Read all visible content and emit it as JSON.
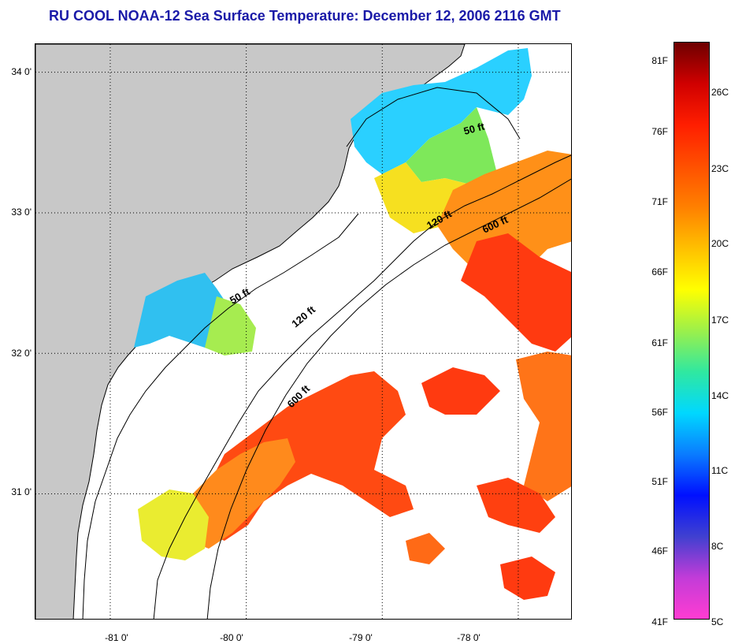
{
  "title": "RU COOL  NOAA-12  Sea Surface Temperature:  December 12, 2006 2116 GMT",
  "map": {
    "latitude_labels": [
      "34 0'",
      "33 0'",
      "32 0'",
      "31 0'"
    ],
    "latitudes": [
      34,
      33,
      32,
      31
    ],
    "longitude_labels": [
      "-81 0'",
      "-80 0'",
      "-79 0'",
      "-78 0'"
    ],
    "longitudes": [
      -81,
      -80,
      -79,
      -78
    ],
    "lon_range": [
      -81.55,
      -77.6
    ],
    "lat_range": [
      30.1,
      34.2
    ],
    "isobaths": [
      {
        "label": "50 ft",
        "depth_ft": 50
      },
      {
        "label": "50 ft",
        "depth_ft": 50
      },
      {
        "label": "120 ft",
        "depth_ft": 120
      },
      {
        "label": "120 ft",
        "depth_ft": 120
      },
      {
        "label": "600 ft",
        "depth_ft": 600
      },
      {
        "label": "600 ft",
        "depth_ft": 600
      }
    ],
    "land_color": "#c8c8c8",
    "water_color": "#ffffff"
  },
  "colorbar": {
    "fahrenheit_labels": [
      "81F",
      "76F",
      "71F",
      "66F",
      "61F",
      "56F",
      "51F",
      "46F",
      "41F"
    ],
    "celsius_labels": [
      "26C",
      "23C",
      "20C",
      "17C",
      "14C",
      "11C",
      "8C",
      "5C"
    ],
    "gradient": [
      "#ff3cd2",
      "#c23cd8",
      "#4040d0",
      "#0010ff",
      "#0a7cff",
      "#00d8ff",
      "#30e8a0",
      "#9cf04a",
      "#ffff00",
      "#ffc000",
      "#ff8000",
      "#ff5000",
      "#ff1e00",
      "#d00000",
      "#6e0000"
    ]
  }
}
